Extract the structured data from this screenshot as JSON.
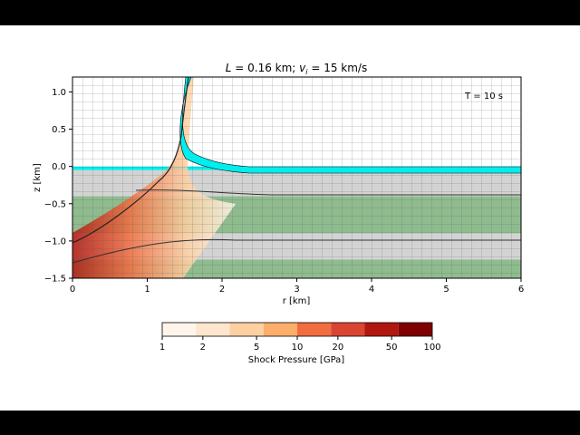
{
  "chart_data": {
    "type": "heatmap",
    "title_L_label": "L",
    "title_L_value": " = 0.16 km; ",
    "title_v_label": "v",
    "title_v_sub": "i",
    "title_v_value": " = 15 km/s",
    "time_label": "T =  10 s",
    "xlabel": "r [km]",
    "ylabel": "z [km]",
    "xlim": [
      0,
      6
    ],
    "ylim": [
      -1.5,
      1.2
    ],
    "xticks": [
      "0",
      "1",
      "2",
      "3",
      "4",
      "5",
      "6"
    ],
    "yticks": [
      "1.0",
      "0.5",
      "0.0",
      "−0.5",
      "−1.0",
      "−1.5"
    ],
    "layers": [
      {
        "name": "surface-ejecta",
        "color": "#00eeee",
        "z_top": 0.0,
        "z_bottom": -0.05
      },
      {
        "name": "layer-1",
        "color": "#d3d3d3",
        "z_top": -0.05,
        "z_bottom": -0.4
      },
      {
        "name": "layer-2",
        "color": "#8fbc8f",
        "z_top": -0.4,
        "z_bottom": -0.9
      },
      {
        "name": "layer-3",
        "color": "#d3d3d3",
        "z_top": -0.9,
        "z_bottom": -1.25
      },
      {
        "name": "layer-4",
        "color": "#8fbc8f",
        "z_top": -1.25,
        "z_bottom": -1.5
      }
    ],
    "colorbar": {
      "label": "Shock Pressure [GPa]",
      "tick_labels": [
        "1",
        "2",
        "5",
        "10",
        "20",
        "50",
        "100"
      ],
      "colors": [
        "#fff5eb",
        "#fee6ce",
        "#fdd0a2",
        "#fdae6b",
        "#f16d40",
        "#d94530",
        "#b0170f",
        "#7f0000"
      ]
    }
  }
}
